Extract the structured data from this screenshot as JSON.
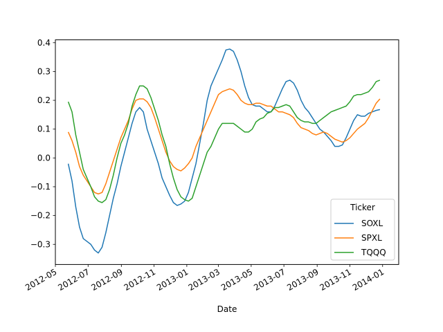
{
  "chart_data": {
    "type": "line",
    "title": "",
    "xlabel": "Date",
    "ylabel": "",
    "x_ticks": [
      "2012-05",
      "2012-07",
      "2012-09",
      "2012-11",
      "2013-01",
      "2013-03",
      "2013-05",
      "2013-07",
      "2013-09",
      "2013-11",
      "2014-01"
    ],
    "y_ticks": [
      "−0.3",
      "−0.2",
      "−0.1",
      "0.0",
      "0.1",
      "0.2",
      "0.3",
      "0.4"
    ],
    "xlim": [
      "2012-05-01",
      "2014-01-31"
    ],
    "ylim": [
      -0.37,
      0.41
    ],
    "grid": false,
    "legend": {
      "title": "Ticker",
      "position": "lower-right"
    },
    "series": [
      {
        "name": "SOXL",
        "color": "#1f77b4",
        "points": [
          [
            "2012-05-25",
            -0.02
          ],
          [
            "2012-06-01",
            -0.08
          ],
          [
            "2012-06-08",
            -0.17
          ],
          [
            "2012-06-15",
            -0.24
          ],
          [
            "2012-06-22",
            -0.28
          ],
          [
            "2012-06-29",
            -0.29
          ],
          [
            "2012-07-06",
            -0.3
          ],
          [
            "2012-07-13",
            -0.32
          ],
          [
            "2012-07-20",
            -0.33
          ],
          [
            "2012-07-27",
            -0.31
          ],
          [
            "2012-08-03",
            -0.26
          ],
          [
            "2012-08-10",
            -0.2
          ],
          [
            "2012-08-17",
            -0.14
          ],
          [
            "2012-08-24",
            -0.09
          ],
          [
            "2012-08-31",
            -0.03
          ],
          [
            "2012-09-07",
            0.02
          ],
          [
            "2012-09-14",
            0.07
          ],
          [
            "2012-09-21",
            0.12
          ],
          [
            "2012-09-28",
            0.16
          ],
          [
            "2012-10-05",
            0.175
          ],
          [
            "2012-10-12",
            0.16
          ],
          [
            "2012-10-19",
            0.1
          ],
          [
            "2012-10-26",
            0.06
          ],
          [
            "2012-11-02",
            0.02
          ],
          [
            "2012-11-09",
            -0.02
          ],
          [
            "2012-11-16",
            -0.07
          ],
          [
            "2012-11-23",
            -0.1
          ],
          [
            "2012-11-30",
            -0.13
          ],
          [
            "2012-12-07",
            -0.155
          ],
          [
            "2012-12-14",
            -0.165
          ],
          [
            "2012-12-21",
            -0.16
          ],
          [
            "2012-12-28",
            -0.15
          ],
          [
            "2013-01-04",
            -0.12
          ],
          [
            "2013-01-11",
            -0.07
          ],
          [
            "2013-01-18",
            -0.02
          ],
          [
            "2013-01-25",
            0.05
          ],
          [
            "2013-02-01",
            0.12
          ],
          [
            "2013-02-08",
            0.2
          ],
          [
            "2013-02-15",
            0.25
          ],
          [
            "2013-02-22",
            0.28
          ],
          [
            "2013-03-01",
            0.31
          ],
          [
            "2013-03-08",
            0.34
          ],
          [
            "2013-03-15",
            0.375
          ],
          [
            "2013-03-22",
            0.378
          ],
          [
            "2013-03-29",
            0.37
          ],
          [
            "2013-04-05",
            0.34
          ],
          [
            "2013-04-12",
            0.3
          ],
          [
            "2013-04-19",
            0.25
          ],
          [
            "2013-04-26",
            0.21
          ],
          [
            "2013-05-03",
            0.185
          ],
          [
            "2013-05-10",
            0.18
          ],
          [
            "2013-05-17",
            0.18
          ],
          [
            "2013-05-24",
            0.17
          ],
          [
            "2013-05-31",
            0.16
          ],
          [
            "2013-06-07",
            0.16
          ],
          [
            "2013-06-14",
            0.18
          ],
          [
            "2013-06-21",
            0.21
          ],
          [
            "2013-06-28",
            0.24
          ],
          [
            "2013-07-05",
            0.265
          ],
          [
            "2013-07-12",
            0.27
          ],
          [
            "2013-07-19",
            0.26
          ],
          [
            "2013-07-26",
            0.235
          ],
          [
            "2013-08-02",
            0.2
          ],
          [
            "2013-08-09",
            0.175
          ],
          [
            "2013-08-16",
            0.16
          ],
          [
            "2013-08-23",
            0.14
          ],
          [
            "2013-08-30",
            0.12
          ],
          [
            "2013-09-06",
            0.1
          ],
          [
            "2013-09-13",
            0.09
          ],
          [
            "2013-09-20",
            0.075
          ],
          [
            "2013-09-27",
            0.06
          ],
          [
            "2013-10-04",
            0.04
          ],
          [
            "2013-10-11",
            0.04
          ],
          [
            "2013-10-18",
            0.045
          ],
          [
            "2013-10-25",
            0.07
          ],
          [
            "2013-11-01",
            0.1
          ],
          [
            "2013-11-08",
            0.13
          ],
          [
            "2013-11-15",
            0.15
          ],
          [
            "2013-11-22",
            0.145
          ],
          [
            "2013-11-29",
            0.145
          ],
          [
            "2013-12-06",
            0.155
          ],
          [
            "2013-12-13",
            0.16
          ],
          [
            "2013-12-20",
            0.165
          ],
          [
            "2013-12-27",
            0.168
          ]
        ]
      },
      {
        "name": "SPXL",
        "color": "#ff7f0e",
        "points": [
          [
            "2012-05-25",
            0.09
          ],
          [
            "2012-06-01",
            0.06
          ],
          [
            "2012-06-08",
            0.02
          ],
          [
            "2012-06-15",
            -0.03
          ],
          [
            "2012-06-22",
            -0.06
          ],
          [
            "2012-06-29",
            -0.08
          ],
          [
            "2012-07-06",
            -0.1
          ],
          [
            "2012-07-13",
            -0.12
          ],
          [
            "2012-07-20",
            -0.125
          ],
          [
            "2012-07-27",
            -0.12
          ],
          [
            "2012-08-03",
            -0.09
          ],
          [
            "2012-08-10",
            -0.05
          ],
          [
            "2012-08-17",
            -0.01
          ],
          [
            "2012-08-24",
            0.03
          ],
          [
            "2012-08-31",
            0.07
          ],
          [
            "2012-09-07",
            0.1
          ],
          [
            "2012-09-14",
            0.13
          ],
          [
            "2012-09-21",
            0.17
          ],
          [
            "2012-09-28",
            0.2
          ],
          [
            "2012-10-05",
            0.205
          ],
          [
            "2012-10-12",
            0.205
          ],
          [
            "2012-10-19",
            0.195
          ],
          [
            "2012-10-26",
            0.175
          ],
          [
            "2012-11-02",
            0.14
          ],
          [
            "2012-11-09",
            0.1
          ],
          [
            "2012-11-16",
            0.06
          ],
          [
            "2012-11-23",
            0.02
          ],
          [
            "2012-11-30",
            -0.01
          ],
          [
            "2012-12-07",
            -0.03
          ],
          [
            "2012-12-14",
            -0.04
          ],
          [
            "2012-12-21",
            -0.045
          ],
          [
            "2012-12-28",
            -0.035
          ],
          [
            "2013-01-04",
            -0.02
          ],
          [
            "2013-01-11",
            0.0
          ],
          [
            "2013-01-18",
            0.04
          ],
          [
            "2013-01-25",
            0.07
          ],
          [
            "2013-02-01",
            0.1
          ],
          [
            "2013-02-08",
            0.13
          ],
          [
            "2013-02-15",
            0.16
          ],
          [
            "2013-02-22",
            0.19
          ],
          [
            "2013-03-01",
            0.22
          ],
          [
            "2013-03-08",
            0.23
          ],
          [
            "2013-03-15",
            0.235
          ],
          [
            "2013-03-22",
            0.24
          ],
          [
            "2013-03-29",
            0.235
          ],
          [
            "2013-04-05",
            0.22
          ],
          [
            "2013-04-12",
            0.2
          ],
          [
            "2013-04-19",
            0.19
          ],
          [
            "2013-04-26",
            0.185
          ],
          [
            "2013-05-03",
            0.185
          ],
          [
            "2013-05-10",
            0.19
          ],
          [
            "2013-05-17",
            0.19
          ],
          [
            "2013-05-24",
            0.185
          ],
          [
            "2013-05-31",
            0.18
          ],
          [
            "2013-06-07",
            0.18
          ],
          [
            "2013-06-14",
            0.17
          ],
          [
            "2013-06-21",
            0.16
          ],
          [
            "2013-06-28",
            0.16
          ],
          [
            "2013-07-05",
            0.155
          ],
          [
            "2013-07-12",
            0.15
          ],
          [
            "2013-07-19",
            0.14
          ],
          [
            "2013-07-26",
            0.12
          ],
          [
            "2013-08-02",
            0.105
          ],
          [
            "2013-08-09",
            0.1
          ],
          [
            "2013-08-16",
            0.095
          ],
          [
            "2013-08-23",
            0.085
          ],
          [
            "2013-08-30",
            0.08
          ],
          [
            "2013-09-06",
            0.085
          ],
          [
            "2013-09-13",
            0.09
          ],
          [
            "2013-09-20",
            0.085
          ],
          [
            "2013-09-27",
            0.075
          ],
          [
            "2013-10-04",
            0.065
          ],
          [
            "2013-10-11",
            0.06
          ],
          [
            "2013-10-18",
            0.055
          ],
          [
            "2013-10-25",
            0.06
          ],
          [
            "2013-11-01",
            0.07
          ],
          [
            "2013-11-08",
            0.085
          ],
          [
            "2013-11-15",
            0.1
          ],
          [
            "2013-11-22",
            0.11
          ],
          [
            "2013-11-29",
            0.12
          ],
          [
            "2013-12-06",
            0.14
          ],
          [
            "2013-12-13",
            0.165
          ],
          [
            "2013-12-20",
            0.19
          ],
          [
            "2013-12-27",
            0.205
          ]
        ]
      },
      {
        "name": "TQQQ",
        "color": "#2ca02c",
        "points": [
          [
            "2012-05-25",
            0.195
          ],
          [
            "2012-06-01",
            0.16
          ],
          [
            "2012-06-08",
            0.08
          ],
          [
            "2012-06-15",
            0.02
          ],
          [
            "2012-06-22",
            -0.04
          ],
          [
            "2012-06-29",
            -0.07
          ],
          [
            "2012-07-06",
            -0.1
          ],
          [
            "2012-07-13",
            -0.135
          ],
          [
            "2012-07-20",
            -0.15
          ],
          [
            "2012-07-27",
            -0.155
          ],
          [
            "2012-08-03",
            -0.145
          ],
          [
            "2012-08-10",
            -0.11
          ],
          [
            "2012-08-17",
            -0.06
          ],
          [
            "2012-08-24",
            0.0
          ],
          [
            "2012-08-31",
            0.05
          ],
          [
            "2012-09-07",
            0.08
          ],
          [
            "2012-09-14",
            0.12
          ],
          [
            "2012-09-21",
            0.18
          ],
          [
            "2012-09-28",
            0.22
          ],
          [
            "2012-10-05",
            0.25
          ],
          [
            "2012-10-12",
            0.25
          ],
          [
            "2012-10-19",
            0.24
          ],
          [
            "2012-10-26",
            0.21
          ],
          [
            "2012-11-02",
            0.17
          ],
          [
            "2012-11-09",
            0.13
          ],
          [
            "2012-11-16",
            0.08
          ],
          [
            "2012-11-23",
            0.04
          ],
          [
            "2012-11-30",
            -0.02
          ],
          [
            "2012-12-07",
            -0.07
          ],
          [
            "2012-12-14",
            -0.11
          ],
          [
            "2012-12-21",
            -0.135
          ],
          [
            "2012-12-28",
            -0.145
          ],
          [
            "2013-01-04",
            -0.15
          ],
          [
            "2013-01-11",
            -0.14
          ],
          [
            "2013-01-18",
            -0.1
          ],
          [
            "2013-01-25",
            -0.06
          ],
          [
            "2013-02-01",
            -0.02
          ],
          [
            "2013-02-08",
            0.02
          ],
          [
            "2013-02-15",
            0.04
          ],
          [
            "2013-02-22",
            0.07
          ],
          [
            "2013-03-01",
            0.1
          ],
          [
            "2013-03-08",
            0.12
          ],
          [
            "2013-03-15",
            0.12
          ],
          [
            "2013-03-22",
            0.12
          ],
          [
            "2013-03-29",
            0.12
          ],
          [
            "2013-04-05",
            0.11
          ],
          [
            "2013-04-12",
            0.1
          ],
          [
            "2013-04-19",
            0.09
          ],
          [
            "2013-04-26",
            0.09
          ],
          [
            "2013-05-03",
            0.1
          ],
          [
            "2013-05-10",
            0.125
          ],
          [
            "2013-05-17",
            0.135
          ],
          [
            "2013-05-24",
            0.14
          ],
          [
            "2013-05-31",
            0.155
          ],
          [
            "2013-06-07",
            0.16
          ],
          [
            "2013-06-14",
            0.175
          ],
          [
            "2013-06-21",
            0.175
          ],
          [
            "2013-06-28",
            0.18
          ],
          [
            "2013-07-05",
            0.185
          ],
          [
            "2013-07-12",
            0.18
          ],
          [
            "2013-07-19",
            0.16
          ],
          [
            "2013-07-26",
            0.14
          ],
          [
            "2013-08-02",
            0.13
          ],
          [
            "2013-08-09",
            0.125
          ],
          [
            "2013-08-16",
            0.125
          ],
          [
            "2013-08-23",
            0.12
          ],
          [
            "2013-08-30",
            0.12
          ],
          [
            "2013-09-06",
            0.13
          ],
          [
            "2013-09-13",
            0.14
          ],
          [
            "2013-09-20",
            0.15
          ],
          [
            "2013-09-27",
            0.16
          ],
          [
            "2013-10-04",
            0.165
          ],
          [
            "2013-10-11",
            0.17
          ],
          [
            "2013-10-18",
            0.175
          ],
          [
            "2013-10-25",
            0.18
          ],
          [
            "2013-11-01",
            0.195
          ],
          [
            "2013-11-08",
            0.215
          ],
          [
            "2013-11-15",
            0.22
          ],
          [
            "2013-11-22",
            0.22
          ],
          [
            "2013-11-29",
            0.225
          ],
          [
            "2013-12-06",
            0.23
          ],
          [
            "2013-12-13",
            0.245
          ],
          [
            "2013-12-20",
            0.265
          ],
          [
            "2013-12-27",
            0.27
          ]
        ]
      }
    ]
  }
}
